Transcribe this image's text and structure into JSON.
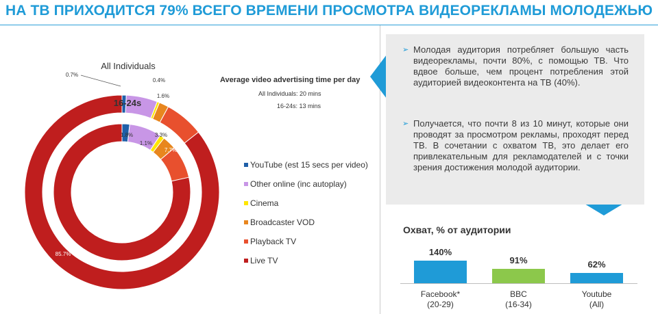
{
  "header": {
    "title": "НА ТВ ПРИХОДИТСЯ 79% ВСЕГО ВРЕМЕНИ ПРОСМОТРА ВИДЕОРЕКЛАМЫ МОЛОДЕЖЬЮ"
  },
  "bullets": [
    "Молодая аудитория потребляет большую часть видеорекламы, почти 80%, с помощью ТВ. Что вдвое больше, чем процент потребления этой аудиторией видеоконтента на ТВ (40%).",
    "Получается, что почти 8 из 10 минут, которые они проводят за просмотром рекламы, проходят перед ТВ. В сочетании с охватом ТВ, это делает его привлекательным для рекламодателей и с точки зрения достижения молодой аудитории."
  ],
  "colors": {
    "accent": "#1f9bd7",
    "youtube": "#1f5fa8",
    "other_online": "#c896e6",
    "cinema": "#ffe600",
    "broadcaster_vod": "#e8861e",
    "playback_tv": "#e8502e",
    "live_tv": "#bf1e1e",
    "bbc_green": "#8cc84b"
  },
  "chart_data": [
    {
      "type": "pie",
      "variant": "donut",
      "title": "Average video advertising time per day",
      "subtitle_lines": [
        "All Individuals: 20 mins",
        "16-24s: 13 mins"
      ],
      "legend": [
        "YouTube (est 15 secs per video)",
        "Other online (inc autoplay)",
        "Cinema",
        "Broadcaster VOD",
        "Playback TV",
        "Live TV"
      ],
      "legend_position": "right",
      "rings": [
        {
          "name": "All Individuals",
          "values": [
            0.7,
            5.2,
            0.4,
            1.6,
            6.5,
            85.7
          ],
          "labels": [
            "0.7%",
            "5.2%",
            "0.4%",
            "1.6%",
            "6.5%",
            "85.7%"
          ]
        },
        {
          "name": "16-24s",
          "values": [
            1.8,
            7.6,
            1.1,
            3.3,
            7.7,
            78.5
          ],
          "labels": [
            "1.8%",
            "7.6%",
            "1.1%",
            "3.3%",
            "7.7%",
            "78.5%"
          ]
        }
      ]
    },
    {
      "type": "bar",
      "title": "Охват, % от аудитории",
      "categories": [
        "Facebook* (20-29)",
        "BBC (16-34)",
        "Youtube (All)"
      ],
      "category_lines": [
        [
          "Facebook*",
          "(20-29)"
        ],
        [
          "BBC",
          "(16-34)"
        ],
        [
          "Youtube",
          "(All)"
        ]
      ],
      "values": [
        140,
        91,
        62
      ],
      "value_labels": [
        "140%",
        "91%",
        "62%"
      ],
      "bar_colors": [
        "#1f9bd7",
        "#8cc84b",
        "#1f9bd7"
      ]
    }
  ]
}
